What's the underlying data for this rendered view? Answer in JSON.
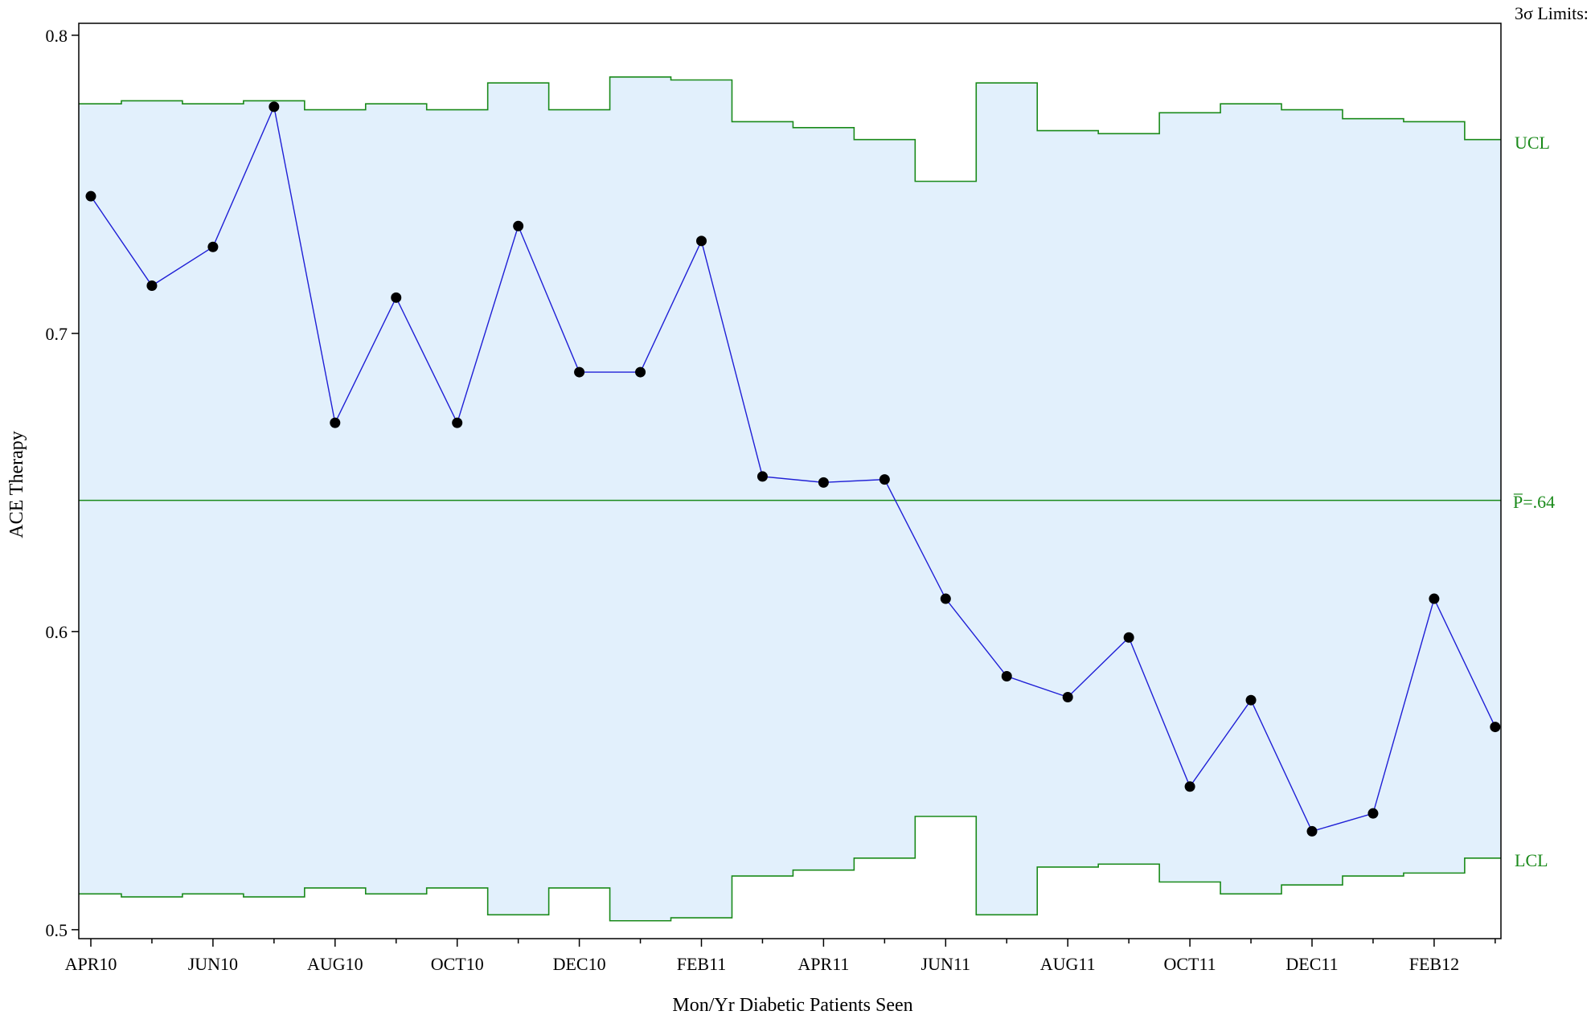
{
  "chart_data": {
    "type": "line",
    "subtype": "p-chart control chart",
    "title": "",
    "xlabel": "Mon/Yr Diabetic Patients Seen",
    "ylabel": "ACE Therapy",
    "ylim": [
      0.497,
      0.804
    ],
    "y_ticks": [
      0.5,
      0.6,
      0.7,
      0.8
    ],
    "y_tick_labels": [
      "0.5",
      "0.6",
      "0.7",
      "0.8"
    ],
    "categories": [
      "APR10",
      "MAY10",
      "JUN10",
      "JUL10",
      "AUG10",
      "SEP10",
      "OCT10",
      "NOV10",
      "DEC10",
      "JAN11",
      "FEB11",
      "MAR11",
      "APR11",
      "MAY11",
      "JUN11",
      "JUL11",
      "AUG11",
      "SEP11",
      "OCT11",
      "NOV11",
      "DEC11",
      "JAN12",
      "FEB12",
      "MAR12"
    ],
    "x_tick_labels": [
      "APR10",
      "",
      "JUN10",
      "",
      "AUG10",
      "",
      "OCT10",
      "",
      "DEC10",
      "",
      "FEB11",
      "",
      "APR11",
      "",
      "JUN11",
      "",
      "AUG11",
      "",
      "OCT11",
      "",
      "DEC11",
      "",
      "FEB12",
      ""
    ],
    "series": [
      {
        "values": [
          0.746,
          0.716,
          0.729,
          0.776,
          0.67,
          0.712,
          0.67,
          0.736,
          0.687,
          0.687,
          0.731,
          0.652,
          0.65,
          0.651,
          0.611,
          0.585,
          0.578,
          0.598,
          0.548,
          0.577,
          0.533,
          0.539,
          0.611,
          0.568
        ]
      }
    ],
    "ucl": [
      0.777,
      0.778,
      0.777,
      0.778,
      0.775,
      0.777,
      0.775,
      0.784,
      0.775,
      0.786,
      0.785,
      0.771,
      0.769,
      0.765,
      0.751,
      0.784,
      0.768,
      0.767,
      0.774,
      0.777,
      0.775,
      0.772,
      0.771,
      0.765
    ],
    "lcl": [
      0.512,
      0.511,
      0.512,
      0.511,
      0.514,
      0.512,
      0.514,
      0.505,
      0.514,
      0.503,
      0.504,
      0.518,
      0.52,
      0.524,
      0.538,
      0.505,
      0.521,
      0.522,
      0.516,
      0.512,
      0.515,
      0.518,
      0.519,
      0.524
    ],
    "center_line": 0.644,
    "limits_header": "3σ Limits:",
    "ucl_label": "UCL",
    "center_label": "P̅=.64",
    "lcl_label": "LCL",
    "grid": false,
    "colors": {
      "series_line": "#1f1fd6",
      "marker": "#000000",
      "limits": "#1a8a1a",
      "band_fill": "#e2f0fc",
      "axis": "#000000"
    }
  }
}
